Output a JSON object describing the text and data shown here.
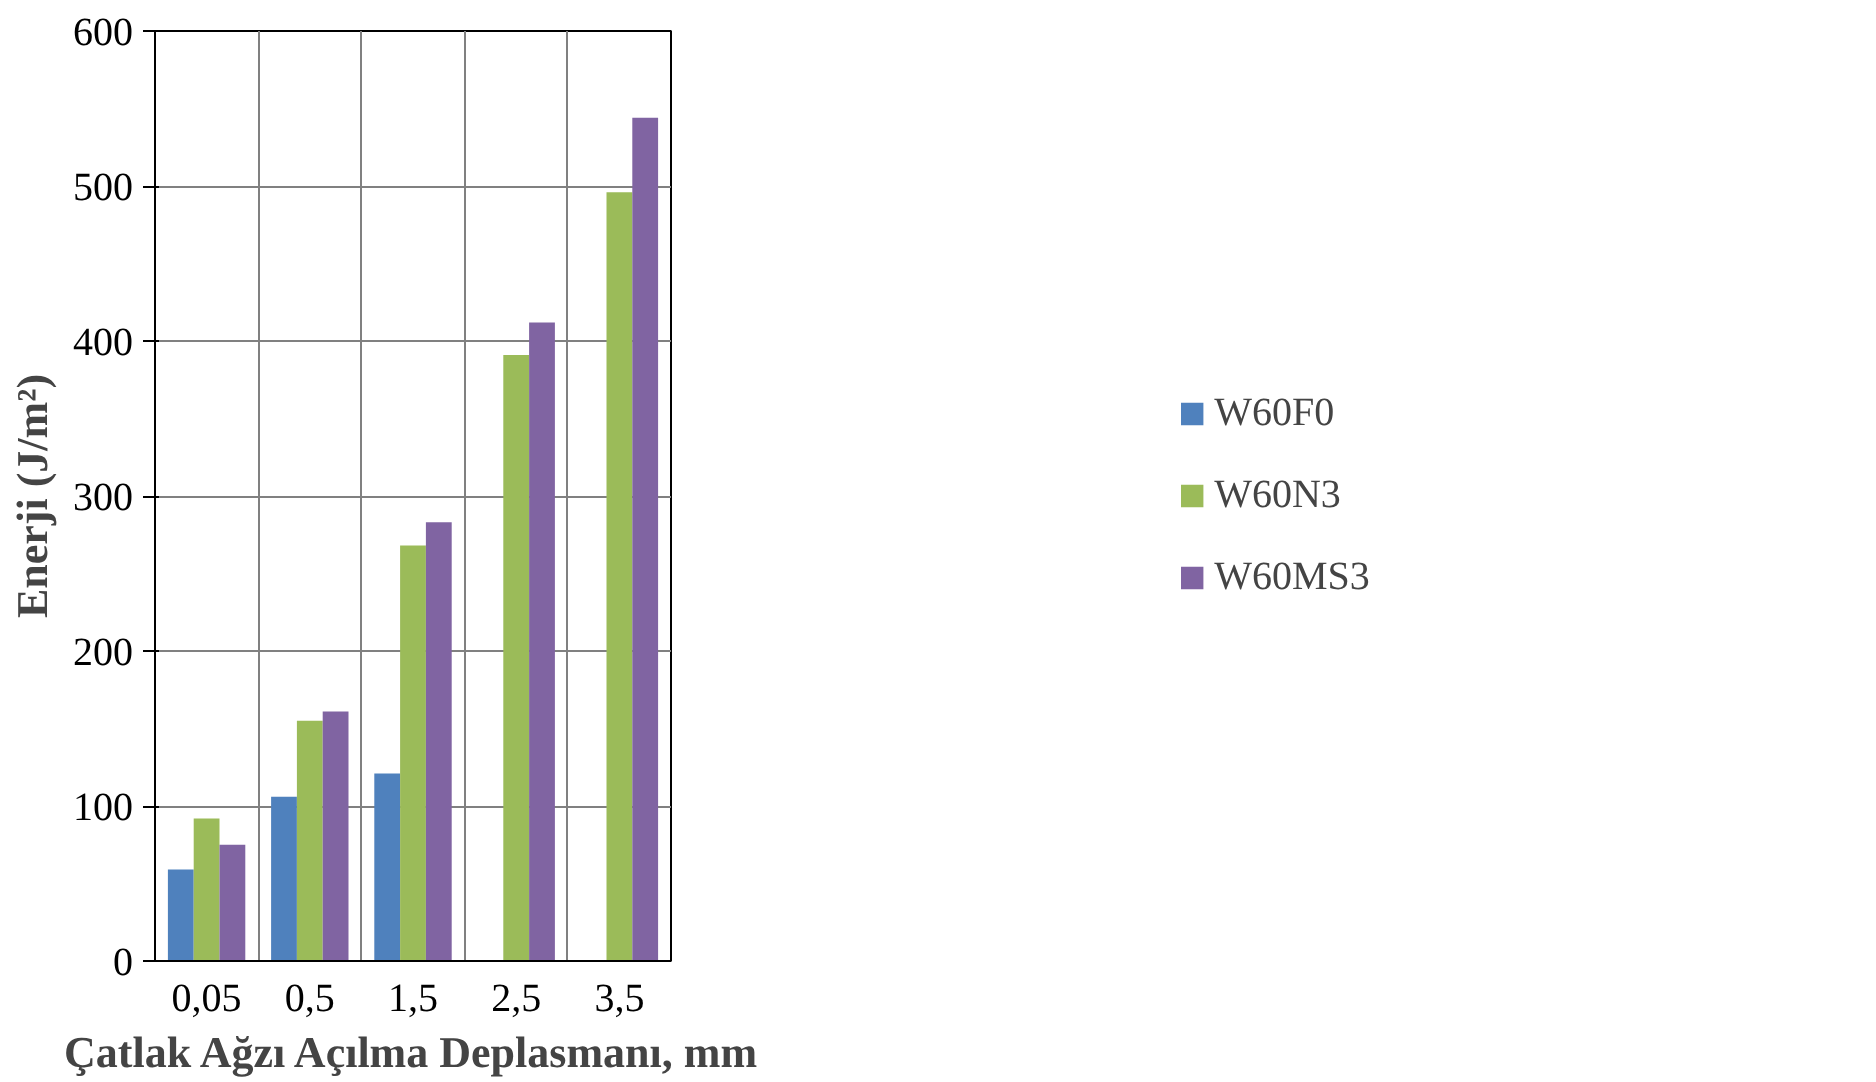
{
  "chart_data": {
    "type": "bar",
    "xlabel": "Çatlak Ağzı Açılma Deplasmanı, mm",
    "ylabel": "Enerji (J/m²)",
    "categories": [
      "0,05",
      "0,5",
      "1,5",
      "2,5",
      "3,5"
    ],
    "series": [
      {
        "name": "W60F0",
        "color": "#4f81bd",
        "values": [
          59,
          106,
          121,
          null,
          null
        ]
      },
      {
        "name": "W60N3",
        "color": "#9bbb59",
        "values": [
          92,
          155,
          268,
          391,
          496
        ]
      },
      {
        "name": "W60MS3",
        "color": "#8064a2",
        "values": [
          75,
          161,
          283,
          412,
          544
        ]
      }
    ],
    "ylim": [
      0,
      600
    ],
    "yticks": [
      0,
      100,
      200,
      300,
      400,
      500,
      600
    ],
    "grid": true,
    "legend": "right"
  }
}
